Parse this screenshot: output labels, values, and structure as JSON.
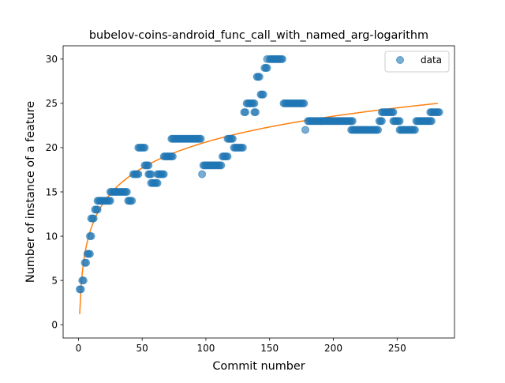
{
  "chart_data": {
    "type": "scatter",
    "title": "bubelov-coins-android_func_call_with_named_arg-logarithm",
    "xlabel": "Commit number",
    "ylabel": "Number of instance of a feature",
    "xlim": [
      -12,
      295
    ],
    "ylim": [
      -1.5,
      31.5
    ],
    "xticks": [
      0,
      50,
      100,
      150,
      200,
      250
    ],
    "yticks": [
      0,
      5,
      10,
      15,
      20,
      25,
      30
    ],
    "grid": false,
    "legend": {
      "placement": "top-right",
      "entries": [
        "data"
      ]
    },
    "colors": {
      "data": "#1f77b4",
      "fit": "#ff7f0e"
    },
    "series": [
      {
        "name": "data",
        "kind": "scatter",
        "segments": [
          [
            1,
            2,
            4
          ],
          [
            3,
            4,
            5
          ],
          [
            5,
            6,
            7
          ],
          [
            7,
            9,
            8
          ],
          [
            9,
            10,
            10
          ],
          [
            10,
            12,
            12
          ],
          [
            13,
            15,
            13
          ],
          [
            15,
            19,
            14
          ],
          [
            20,
            25,
            14
          ],
          [
            25,
            38,
            15
          ],
          [
            39,
            42,
            14
          ],
          [
            43,
            47,
            17
          ],
          [
            47,
            52,
            20
          ],
          [
            52,
            55,
            18
          ],
          [
            55,
            57,
            17
          ],
          [
            57,
            62,
            16
          ],
          [
            62,
            67,
            17
          ],
          [
            67,
            74,
            19
          ],
          [
            73,
            96,
            21
          ],
          [
            97,
            97,
            17
          ],
          [
            98,
            112,
            18
          ],
          [
            113,
            117,
            19
          ],
          [
            117,
            121,
            21
          ],
          [
            122,
            129,
            20
          ],
          [
            130,
            131,
            24
          ],
          [
            132,
            138,
            25
          ],
          [
            138,
            139,
            24
          ],
          [
            140,
            142,
            28
          ],
          [
            143,
            145,
            26
          ],
          [
            146,
            148,
            29
          ],
          [
            148,
            148,
            30
          ],
          [
            150,
            160,
            30
          ],
          [
            161,
            177,
            25
          ],
          [
            178,
            178,
            22
          ],
          [
            180,
            190,
            23
          ],
          [
            190,
            215,
            23
          ],
          [
            214,
            235,
            22
          ],
          [
            236,
            238,
            23
          ],
          [
            238,
            247,
            24
          ],
          [
            247,
            252,
            23
          ],
          [
            252,
            264,
            22
          ],
          [
            265,
            277,
            23
          ],
          [
            276,
            283,
            24
          ]
        ]
      },
      {
        "name": "",
        "kind": "line",
        "fit": {
          "model": "logarithm",
          "a": 4.22,
          "b": 1.19,
          "x_start": 1,
          "x_end": 282
        }
      }
    ]
  }
}
